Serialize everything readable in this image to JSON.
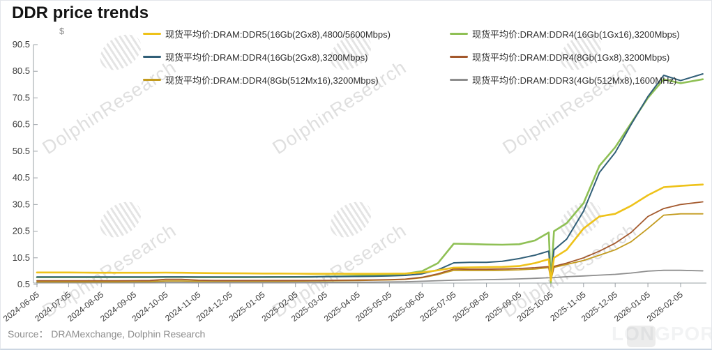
{
  "title": "DDR price trends",
  "source": "Source： DRAMexchange,  Dolphin  Research",
  "watermark": {
    "brand": "DolphinResearch",
    "footer_brand": "LONGPORT"
  },
  "legend": {
    "items": [
      {
        "id": "ddr5-16gb-2gx8",
        "label": "现货平均价:DRAM:DDR5(16Gb(2Gx8),4800/5600Mbps)",
        "color": "#EEC219"
      },
      {
        "id": "ddr4-16gb-1gx16",
        "label": "现货平均价:DRAM:DDR4(16Gb(1Gx16),3200Mbps)",
        "color": "#8FC055"
      },
      {
        "id": "ddr4-16gb-2gx8",
        "label": "现货平均价:DRAM:DDR4(16Gb(2Gx8),3200Mbps)",
        "color": "#315F78"
      },
      {
        "id": "ddr4-8gb-1gx8",
        "label": "现货平均价:DRAM:DDR4(8Gb(1Gx8),3200Mbps)",
        "color": "#A3582C"
      },
      {
        "id": "ddr4-8gb-512mx16",
        "label": "现货平均价:DRAM:DDR4(8Gb(512Mx16),3200Mbps)",
        "color": "#C39B1E"
      },
      {
        "id": "ddr3-4gb-512mx8",
        "label": "现货平均价:DRAM:DDR3(4Gb(512Mx8),1600MHz)",
        "color": "#8E8E8E"
      }
    ]
  },
  "chart_data": {
    "type": "line",
    "title": "DDR price trends",
    "xlabel": "",
    "ylabel": "$",
    "ylim": [
      0.5,
      90.5
    ],
    "grid": false,
    "legend_position": "top",
    "yticks": [
      90.5,
      80.5,
      70.5,
      60.5,
      50.5,
      40.5,
      30.5,
      20.5,
      10.5,
      0.5
    ],
    "xticklabels": [
      "2024-06-05",
      "2024-07-05",
      "2024-08-05",
      "2024-09-05",
      "2024-10-05",
      "2024-11-05",
      "2024-12-05",
      "2025-01-05",
      "2025-02-05",
      "2025-03-05",
      "2025-04-05",
      "2025-05-05",
      "2025-06-05",
      "2025-07-05",
      "2025-08-05",
      "2025-09-05",
      "2025-10-05",
      "2025-11-05",
      "2025-12-05",
      "2026-01-05",
      "2026-02-05"
    ],
    "x": [
      "2024-06-05",
      "2024-06-20",
      "2024-07-05",
      "2024-07-20",
      "2024-08-05",
      "2024-08-20",
      "2024-09-05",
      "2024-09-20",
      "2024-10-05",
      "2024-10-20",
      "2024-11-05",
      "2024-11-20",
      "2024-12-05",
      "2024-12-20",
      "2025-01-05",
      "2025-01-20",
      "2025-02-05",
      "2025-02-20",
      "2025-03-05",
      "2025-03-20",
      "2025-04-05",
      "2025-04-20",
      "2025-05-05",
      "2025-05-20",
      "2025-06-05",
      "2025-06-20",
      "2025-07-05",
      "2025-07-20",
      "2025-08-05",
      "2025-08-20",
      "2025-09-05",
      "2025-09-20",
      "2025-10-03",
      "2025-10-05",
      "2025-10-08",
      "2025-10-20",
      "2025-11-05",
      "2025-11-20",
      "2025-12-05",
      "2025-12-20",
      "2026-01-05",
      "2026-01-20",
      "2026-02-05",
      "2026-02-26"
    ],
    "series": [
      {
        "name": "现货平均价:DRAM:DDR5(16Gb(2Gx8),4800/5600Mbps)",
        "color": "#EEC219",
        "values": [
          5.0,
          5.0,
          5.0,
          4.95,
          4.9,
          4.9,
          4.9,
          4.9,
          4.95,
          4.9,
          4.8,
          4.75,
          4.7,
          4.65,
          4.6,
          4.6,
          4.55,
          4.5,
          4.5,
          4.5,
          4.5,
          4.5,
          4.55,
          4.6,
          5.0,
          5.8,
          6.8,
          6.9,
          7.0,
          7.1,
          7.4,
          8.5,
          10.0,
          2.0,
          10.5,
          13.5,
          21.5,
          26.0,
          27.0,
          30.0,
          34.0,
          37.0,
          37.5,
          38.0
        ]
      },
      {
        "name": "现货平均价:DRAM:DDR4(16Gb(1Gx16),3200Mbps)",
        "color": "#8FC055",
        "values": [
          3.2,
          3.2,
          3.2,
          3.2,
          3.2,
          3.2,
          3.2,
          3.2,
          3.25,
          3.25,
          3.2,
          3.2,
          3.2,
          3.2,
          3.25,
          3.3,
          3.3,
          3.35,
          3.5,
          3.6,
          3.8,
          3.9,
          4.1,
          4.5,
          5.5,
          8.5,
          15.8,
          15.7,
          15.5,
          15.4,
          15.6,
          17.0,
          20.0,
          1.2,
          20.5,
          23.5,
          31.0,
          45.0,
          52.0,
          61.0,
          70.5,
          77.5,
          76.0,
          77.5
        ]
      },
      {
        "name": "现货平均价:DRAM:DDR4(16Gb(2Gx8),3200Mbps)",
        "color": "#315F78",
        "values": [
          3.3,
          3.3,
          3.3,
          3.3,
          3.3,
          3.3,
          3.3,
          3.3,
          3.35,
          3.35,
          3.3,
          3.3,
          3.3,
          3.3,
          3.3,
          3.3,
          3.35,
          3.35,
          3.4,
          3.45,
          3.5,
          3.55,
          3.7,
          3.9,
          4.5,
          6.0,
          8.6,
          8.8,
          8.8,
          9.2,
          10.2,
          11.5,
          13.0,
          2.2,
          13.5,
          17.5,
          28.0,
          42.5,
          50.0,
          60.5,
          71.0,
          79.0,
          77.0,
          79.5
        ]
      },
      {
        "name": "现货平均价:DRAM:DDR4(8Gb(1Gx8),3200Mbps)",
        "color": "#A3582C",
        "values": [
          1.9,
          1.9,
          1.9,
          1.9,
          1.9,
          1.9,
          1.95,
          2.0,
          2.4,
          2.4,
          2.1,
          2.0,
          2.0,
          2.0,
          2.0,
          2.0,
          2.0,
          2.0,
          2.05,
          2.1,
          2.15,
          2.2,
          2.3,
          2.5,
          3.2,
          4.5,
          6.3,
          6.2,
          6.2,
          6.3,
          6.5,
          6.8,
          7.2,
          2.5,
          7.3,
          8.5,
          10.5,
          13.0,
          16.0,
          20.0,
          26.0,
          29.0,
          30.5,
          31.5
        ]
      },
      {
        "name": "现货平均价:DRAM:DDR4(8Gb(512Mx16),3200Mbps)",
        "color": "#C39B1E",
        "values": [
          1.5,
          1.5,
          1.5,
          1.5,
          1.5,
          1.5,
          1.55,
          1.6,
          1.8,
          1.8,
          1.7,
          1.7,
          1.7,
          1.7,
          1.7,
          1.7,
          1.75,
          1.8,
          1.85,
          1.9,
          2.0,
          2.1,
          2.2,
          2.4,
          3.0,
          4.2,
          5.8,
          5.7,
          5.7,
          5.8,
          6.0,
          6.3,
          6.8,
          2.0,
          6.9,
          8.0,
          9.5,
          11.5,
          13.5,
          16.5,
          21.5,
          26.5,
          27.0,
          27.0
        ]
      },
      {
        "name": "现货平均价:DRAM:DDR3(4Gb(512Mx8),1600MHz)",
        "color": "#8E8E8E",
        "values": [
          1.2,
          1.2,
          1.2,
          1.2,
          1.2,
          1.2,
          1.2,
          1.2,
          1.25,
          1.25,
          1.2,
          1.2,
          1.2,
          1.2,
          1.2,
          1.2,
          1.2,
          1.25,
          1.3,
          1.3,
          1.35,
          1.4,
          1.45,
          1.5,
          1.7,
          1.9,
          2.1,
          2.2,
          2.3,
          2.4,
          2.6,
          2.8,
          3.0,
          3.0,
          3.1,
          3.4,
          3.7,
          4.0,
          4.3,
          4.8,
          5.5,
          5.8,
          5.8,
          5.6
        ]
      }
    ]
  }
}
